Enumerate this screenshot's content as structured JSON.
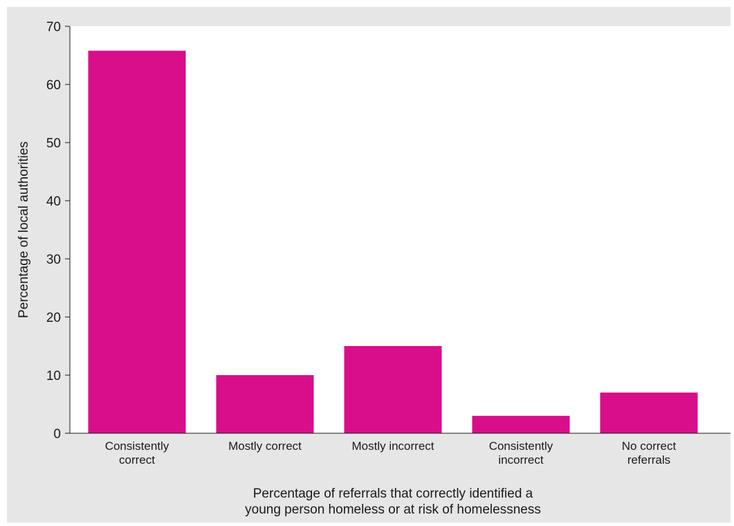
{
  "chart_data": {
    "type": "bar",
    "categories": [
      [
        "Consistently",
        "correct"
      ],
      [
        "Mostly correct"
      ],
      [
        "Mostly incorrect"
      ],
      [
        "Consistently",
        "incorrect"
      ],
      [
        "No correct",
        "referrals"
      ]
    ],
    "values": [
      65.8,
      10,
      15,
      3,
      7
    ],
    "xlabel": [
      "Percentage of referrals that correctly identified a",
      "young person homeless or at risk of homelessness"
    ],
    "ylabel": "Percentage of local authorities",
    "ylim": [
      0,
      70
    ],
    "yticks": [
      0,
      10,
      20,
      30,
      40,
      50,
      60,
      70
    ],
    "grid": false,
    "colors": {
      "bar": "#d90e8b",
      "panel": "#e6e6e7",
      "plot": "#ffffff",
      "axis": "#1a1a1a"
    }
  }
}
